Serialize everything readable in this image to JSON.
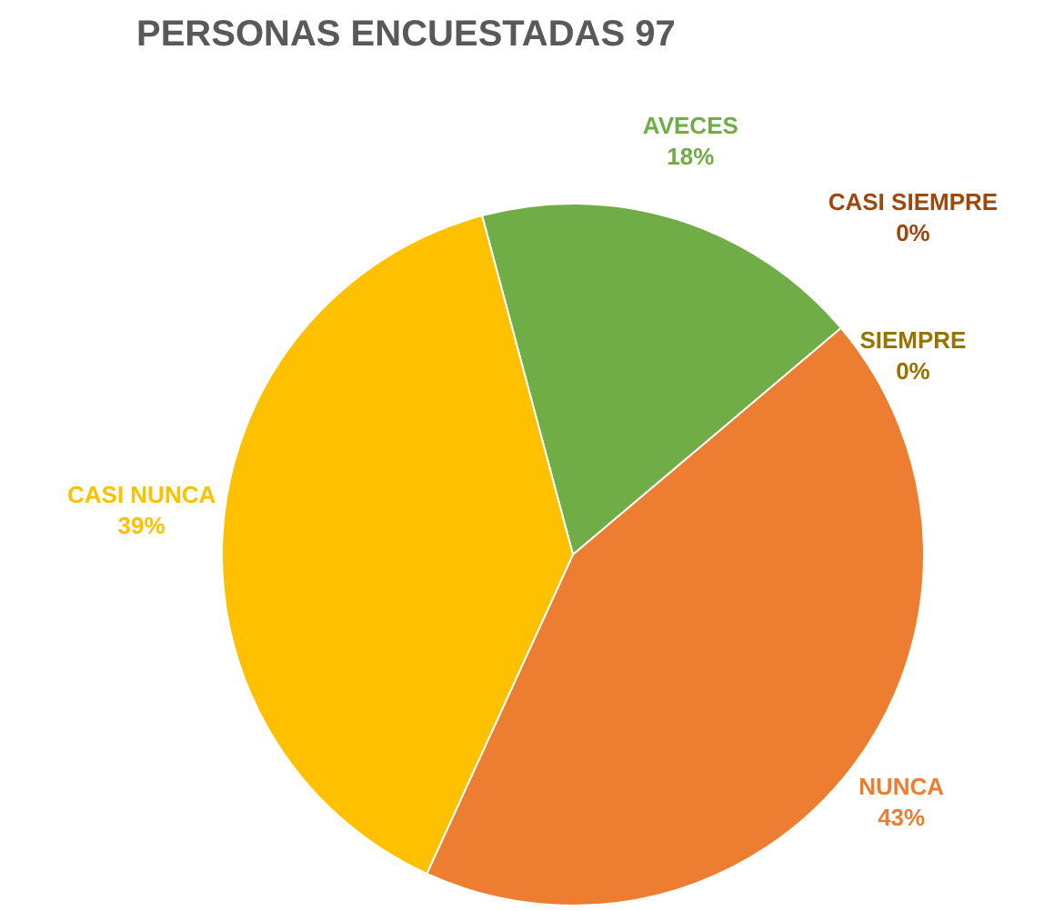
{
  "chart_data": {
    "type": "pie",
    "title": "PERSONAS ENCUESTADAS 97",
    "categories": [
      "AVECES",
      "CASI SIEMPRE",
      "SIEMPRE",
      "NUNCA",
      "CASI NUNCA"
    ],
    "values": [
      18,
      0,
      0,
      43,
      39
    ],
    "value_labels": [
      "18%",
      "0%",
      "0%",
      "43%",
      "39%"
    ],
    "colors": [
      "#70ad47",
      "#9e480e",
      "#997300",
      "#ed7d31",
      "#ffc000"
    ]
  }
}
